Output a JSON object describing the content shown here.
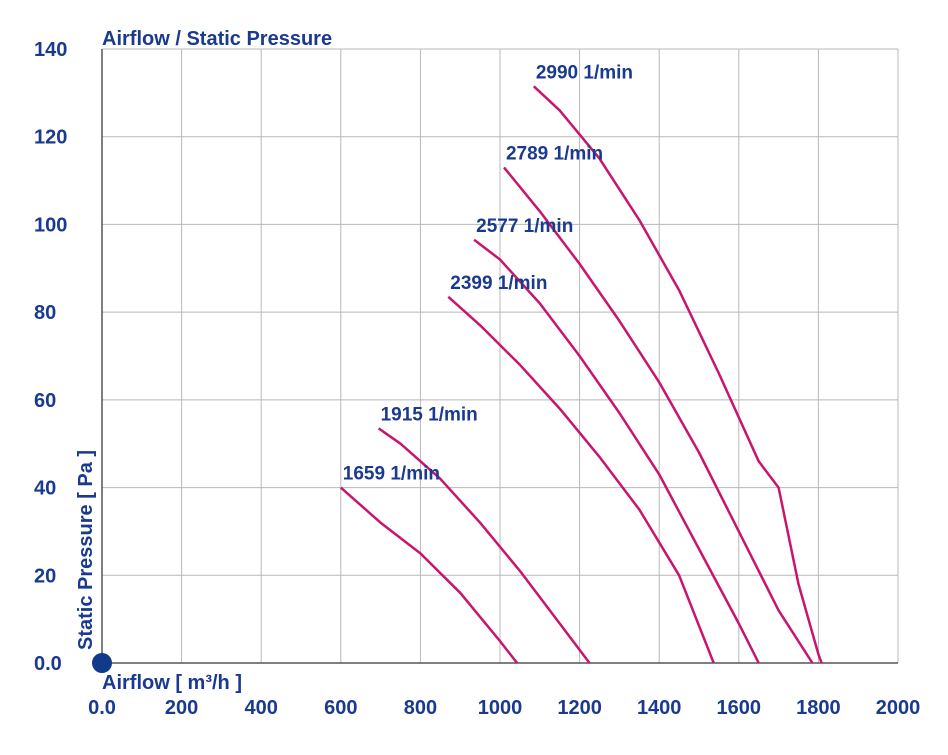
{
  "chart_data": {
    "type": "line",
    "title": "Airflow / Static Pressure",
    "xlabel": "Airflow [ m³/h ]",
    "ylabel": "Static Pressure [ Pa ]",
    "xlim": [
      0,
      2000
    ],
    "ylim": [
      0,
      140
    ],
    "x_ticks": [
      0,
      200,
      400,
      600,
      800,
      1000,
      1200,
      1400,
      1600,
      1800,
      2000
    ],
    "y_ticks": [
      0,
      20,
      40,
      60,
      80,
      100,
      120,
      140
    ],
    "x_tick_labels": [
      "0.0",
      "200",
      "400",
      "600",
      "800",
      "1000",
      "1200",
      "1400",
      "1600",
      "1800",
      "2000"
    ],
    "y_tick_labels": [
      "0.0",
      "20",
      "40",
      "60",
      "80",
      "100",
      "120",
      "140"
    ],
    "grid": true,
    "colors": {
      "axis_text": "#1a3a8f",
      "curve": "#c8156e",
      "grid": "#b8b8b8",
      "axis_line": "#555555",
      "origin_dot": "#103a8a"
    },
    "series": [
      {
        "name": "1659 1/min",
        "points": [
          [
            600,
            40
          ],
          [
            700,
            32
          ],
          [
            800,
            25
          ],
          [
            900,
            16
          ],
          [
            1000,
            5
          ],
          [
            1043,
            0
          ]
        ]
      },
      {
        "name": "1915 1/min",
        "points": [
          [
            695,
            53.5
          ],
          [
            750,
            50
          ],
          [
            850,
            42
          ],
          [
            950,
            32
          ],
          [
            1050,
            21
          ],
          [
            1150,
            9
          ],
          [
            1225,
            0
          ]
        ]
      },
      {
        "name": "2399 1/min",
        "points": [
          [
            870,
            83.5
          ],
          [
            950,
            77
          ],
          [
            1050,
            68
          ],
          [
            1150,
            58
          ],
          [
            1250,
            47
          ],
          [
            1350,
            35
          ],
          [
            1450,
            20
          ],
          [
            1537,
            0
          ]
        ]
      },
      {
        "name": "2577 1/min",
        "points": [
          [
            935,
            96.5
          ],
          [
            1000,
            92
          ],
          [
            1100,
            82
          ],
          [
            1200,
            70
          ],
          [
            1300,
            57
          ],
          [
            1400,
            43
          ],
          [
            1500,
            26
          ],
          [
            1600,
            9
          ],
          [
            1650,
            0
          ]
        ]
      },
      {
        "name": "2789 1/min",
        "points": [
          [
            1010,
            113
          ],
          [
            1100,
            103
          ],
          [
            1200,
            91
          ],
          [
            1300,
            78
          ],
          [
            1400,
            64
          ],
          [
            1500,
            48
          ],
          [
            1600,
            30
          ],
          [
            1700,
            12
          ],
          [
            1785,
            0
          ]
        ]
      },
      {
        "name": "2990 1/min",
        "points": [
          [
            1085,
            131.5
          ],
          [
            1150,
            126
          ],
          [
            1250,
            115
          ],
          [
            1350,
            101
          ],
          [
            1450,
            85
          ],
          [
            1550,
            66
          ],
          [
            1650,
            46
          ],
          [
            1700,
            40
          ],
          [
            1750,
            18
          ],
          [
            1800,
            2
          ],
          [
            1808,
            0
          ]
        ]
      }
    ]
  }
}
